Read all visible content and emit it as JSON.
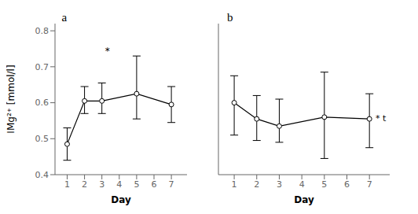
{
  "chart_data": [
    {
      "type": "line",
      "title": "a",
      "xlabel": "Day",
      "ylabel": "IMg²⁺ [mmol/l]",
      "x": [
        1,
        2,
        3,
        5,
        7
      ],
      "series": [
        {
          "name": "a",
          "color": "#000000",
          "marker": "circle",
          "values": [
            0.485,
            0.605,
            0.605,
            0.625,
            0.595
          ],
          "error_low": [
            0.045,
            0.035,
            0.035,
            0.07,
            0.05
          ],
          "error_high": [
            0.045,
            0.04,
            0.05,
            0.105,
            0.05
          ]
        }
      ],
      "xlim": [
        0.3,
        7.9
      ],
      "xticks": [
        1,
        2,
        3,
        4,
        5,
        6,
        7
      ],
      "ylim": [
        0.4,
        0.82
      ],
      "yticks": [
        0.4,
        0.5,
        0.6,
        0.7,
        0.8
      ],
      "grid": false,
      "annotations": [
        {
          "text": "*"
        }
      ]
    },
    {
      "type": "line",
      "title": "b",
      "xlabel": "Day",
      "x": [
        1,
        2,
        3,
        5,
        7
      ],
      "series": [
        {
          "name": "b",
          "color": "#000000",
          "marker": "circle",
          "values": [
            0.6,
            0.555,
            0.535,
            0.56,
            0.555
          ],
          "error_low": [
            0.09,
            0.06,
            0.045,
            0.115,
            0.08
          ],
          "error_high": [
            0.075,
            0.065,
            0.075,
            0.125,
            0.07
          ]
        }
      ],
      "xlim": [
        0.3,
        7.9
      ],
      "xticks": [
        1,
        2,
        3,
        4,
        5,
        6,
        7
      ],
      "ylim": [
        0.4,
        0.82
      ],
      "yticks": [
        0.4,
        0.5,
        0.6,
        0.7,
        0.8
      ],
      "grid": false,
      "tick_labels": "x",
      "annotations": [
        {
          "text": "* t",
          "x": 7.1,
          "y": 0.558
        }
      ]
    }
  ]
}
